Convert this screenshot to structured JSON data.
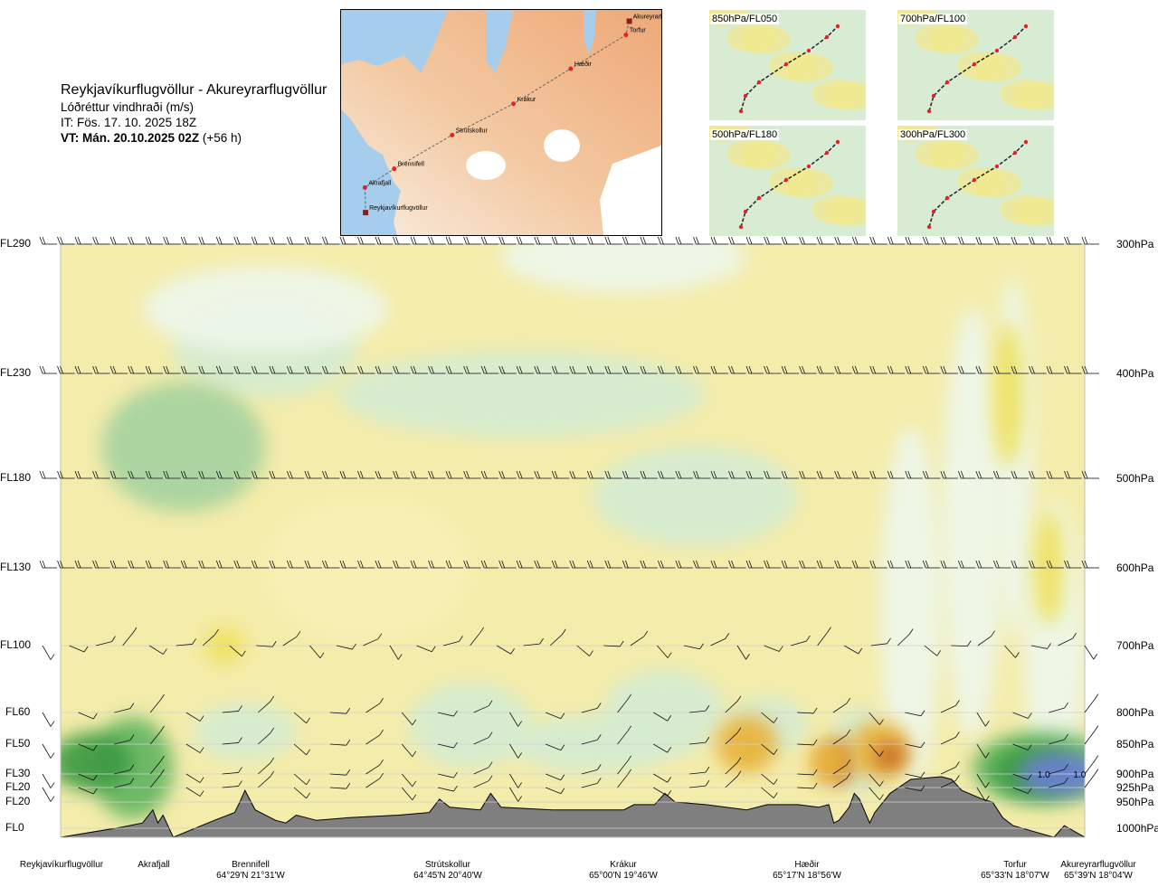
{
  "header": {
    "route_title": "Reykjavíkurflugvöllur - Akureyrarflugvöllur",
    "quantity": "Lóðréttur vindhraði (m/s)",
    "issue_time": "IT: Fös. 17. 10. 2025 18Z",
    "valid_prefix": "VT: Mán. 20.10.2025 02Z",
    "valid_suffix": " (+56 h)"
  },
  "route_map": {
    "points": [
      {
        "name": "Akureyrarflugvöllur",
        "lon": -18.07,
        "lat": 65.66
      },
      {
        "name": "Torfur",
        "lon": -18.12,
        "lat": 65.55
      },
      {
        "name": "Hæðir",
        "lon": -18.93,
        "lat": 65.28
      },
      {
        "name": "Krákur",
        "lon": -19.77,
        "lat": 65.0
      },
      {
        "name": "Strútskollur",
        "lon": -20.67,
        "lat": 64.75
      },
      {
        "name": "Brennifell",
        "lon": -21.52,
        "lat": 64.48
      },
      {
        "name": "Akrafjall",
        "lon": -21.95,
        "lat": 64.33
      },
      {
        "name": "Reykjavíkurflugvöllur",
        "lon": -21.94,
        "lat": 64.13
      }
    ],
    "colors": {
      "sea": "#a7cdec",
      "land_low": "#f6e8d8",
      "land_high": "#f1b98a",
      "glacier": "#ffffff",
      "route": "#666666",
      "point": "#e8202a"
    }
  },
  "level_maps": [
    {
      "label": "850hPa/FL050"
    },
    {
      "label": "700hPa/FL100"
    },
    {
      "label": "500hPa/FL180"
    },
    {
      "label": "300hPa/FL300"
    }
  ],
  "chart_data": {
    "type": "heatmap",
    "title": "Reykjavíkurflugvöllur - Akureyrarflugvöllur",
    "quantity": "Lóðréttur vindhraði (m/s)",
    "x": {
      "points": [
        {
          "name": "Reykjavíkurflugvöllur",
          "coord": "",
          "distance": 0
        },
        {
          "name": "Akrafjall",
          "coord": "",
          "distance": 0.09
        },
        {
          "name": "Brennifell",
          "coord": "64°29'N 21°31'W",
          "distance": 0.18
        },
        {
          "name": "Strútskollur",
          "coord": "64°45'N 20°40'W",
          "distance": 0.38
        },
        {
          "name": "Krákur",
          "coord": "65°00'N 19°46'W",
          "distance": 0.57
        },
        {
          "name": "Hæðir",
          "coord": "65°17'N 18°56'W",
          "distance": 0.76
        },
        {
          "name": "Torfur",
          "coord": "65°33'N 18°07'W",
          "distance": 0.95
        },
        {
          "name": "Akureyrarflugvöllur",
          "coord": "65°39'N 18°04'W",
          "distance": 1.0
        }
      ]
    },
    "y_flight_levels": [
      "FL290",
      "FL230",
      "FL180",
      "FL130",
      "FL100",
      "FL60",
      "FL50",
      "FL30",
      "FL20",
      "FL20",
      "FL0"
    ],
    "y_pressure_levels": [
      "300hPa",
      "400hPa",
      "500hPa",
      "600hPa",
      "700hPa",
      "800hPa",
      "850hPa",
      "900hPa",
      "925hPa",
      "950hPa",
      "1000hPa"
    ],
    "pressure_hpa": [
      300,
      400,
      500,
      600,
      700,
      800,
      850,
      900,
      925,
      950,
      1000
    ],
    "color_scale": [
      {
        "w": -1.0,
        "color": "#3a9a3f"
      },
      {
        "w": -0.5,
        "color": "#63b562"
      },
      {
        "w": -0.25,
        "color": "#a6d3a0"
      },
      {
        "w": -0.1,
        "color": "#d5ecd1"
      },
      {
        "w": -0.05,
        "color": "#eef7ea"
      },
      {
        "w": 0,
        "color": "#fffbe6"
      },
      {
        "w": 0.05,
        "color": "#f8f0b5"
      },
      {
        "w": 0.25,
        "color": "#efe15c"
      },
      {
        "w": 0.5,
        "color": "#e8b23a"
      },
      {
        "w": 1.0,
        "color": "#c76a22"
      },
      {
        "w": 2.0,
        "color": "#6a7fd6"
      }
    ],
    "annotations": [
      {
        "text": "1.0",
        "distance": 0.96,
        "pressure": 900
      },
      {
        "text": "1.0",
        "distance": 0.995,
        "pressure": 900
      }
    ],
    "terrain_color": "#7f7f7f"
  }
}
